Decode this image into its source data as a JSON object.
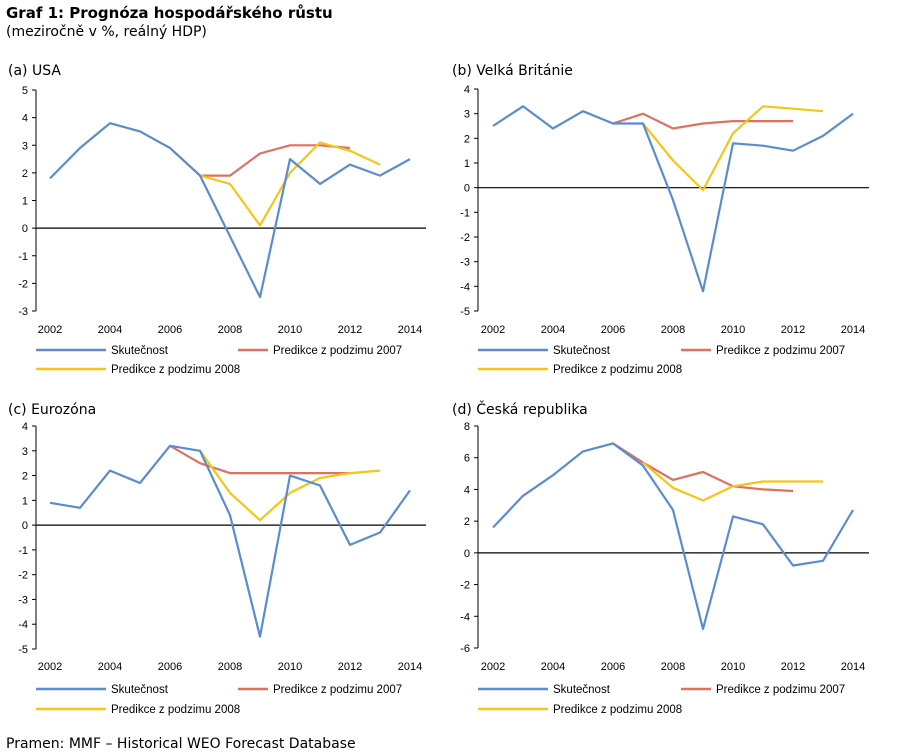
{
  "header": {
    "title": "Graf 1: Prognóza hospodářského růstu",
    "subtitle": "(meziročně v %, reálný HDP)"
  },
  "footer": {
    "source": "Pramen: MMF – Historical WEO Forecast Database"
  },
  "colors": {
    "actual": "#5b8ccf",
    "pred2007": "#e07060",
    "pred2008": "#f5c518",
    "zeroline": "#000000"
  },
  "chart_data": [
    {
      "type": "line",
      "title": "(a) USA",
      "x_ticks": [
        "2002",
        "2004",
        "2006",
        "2008",
        "2010",
        "2012",
        "2014"
      ],
      "ylim": [
        -3,
        5
      ],
      "y_ticks": [
        "-3",
        "-2",
        "-1",
        "0",
        "1",
        "2",
        "3",
        "4",
        "5"
      ],
      "legend": [
        "Skutečnost",
        "Predikce z podzimu 2007",
        "Predikce z podzimu 2008"
      ],
      "series": [
        {
          "name": "Skutečnost",
          "x": [
            2002,
            2003,
            2004,
            2005,
            2006,
            2007,
            2008,
            2009,
            2010,
            2011,
            2012,
            2013,
            2014
          ],
          "values": [
            1.8,
            2.9,
            3.8,
            3.5,
            2.9,
            1.9,
            -0.3,
            -2.5,
            2.5,
            1.6,
            2.3,
            1.9,
            2.5
          ]
        },
        {
          "name": "Predikce z podzimu 2007",
          "x": [
            2006,
            2007,
            2008,
            2009,
            2010,
            2011,
            2012
          ],
          "values": [
            2.9,
            1.9,
            1.9,
            2.7,
            3.0,
            3.0,
            2.9
          ]
        },
        {
          "name": "Predikce z podzimu 2008",
          "x": [
            2007,
            2008,
            2009,
            2010,
            2011,
            2012,
            2013
          ],
          "values": [
            1.9,
            1.6,
            0.1,
            2.0,
            3.1,
            2.8,
            2.3
          ]
        }
      ]
    },
    {
      "type": "line",
      "title": "(b) Velká Británie",
      "x_ticks": [
        "2002",
        "2004",
        "2006",
        "2008",
        "2010",
        "2012",
        "2014"
      ],
      "ylim": [
        -5,
        4
      ],
      "y_ticks": [
        "-5",
        "-4",
        "-3",
        "-2",
        "-1",
        "0",
        "1",
        "2",
        "3",
        "4"
      ],
      "legend": [
        "Skutečnost",
        "Predikce z podzimu 2007",
        "Predikce z podzimu 2008"
      ],
      "series": [
        {
          "name": "Skutečnost",
          "x": [
            2002,
            2003,
            2004,
            2005,
            2006,
            2007,
            2008,
            2009,
            2010,
            2011,
            2012,
            2013,
            2014
          ],
          "values": [
            2.5,
            3.3,
            2.4,
            3.1,
            2.6,
            2.6,
            -0.5,
            -4.2,
            1.8,
            1.7,
            1.5,
            2.1,
            3.0
          ]
        },
        {
          "name": "Predikce z podzimu 2007",
          "x": [
            2006,
            2007,
            2008,
            2009,
            2010,
            2011,
            2012
          ],
          "values": [
            2.6,
            3.0,
            2.4,
            2.6,
            2.7,
            2.7,
            2.7
          ]
        },
        {
          "name": "Predikce z podzimu 2008",
          "x": [
            2007,
            2008,
            2009,
            2010,
            2011,
            2012,
            2013
          ],
          "values": [
            2.6,
            1.1,
            -0.1,
            2.2,
            3.3,
            3.2,
            3.1
          ]
        }
      ]
    },
    {
      "type": "line",
      "title": "(c) Eurozóna",
      "x_ticks": [
        "2002",
        "2004",
        "2006",
        "2008",
        "2010",
        "2012",
        "2014"
      ],
      "ylim": [
        -5,
        4
      ],
      "y_ticks": [
        "-5",
        "-4",
        "-3",
        "-2",
        "-1",
        "0",
        "1",
        "2",
        "3",
        "4"
      ],
      "legend": [
        "Skutečnost",
        "Predikce z podzimu 2007",
        "Predikce z podzimu 2008"
      ],
      "series": [
        {
          "name": "Skutečnost",
          "x": [
            2002,
            2003,
            2004,
            2005,
            2006,
            2007,
            2008,
            2009,
            2010,
            2011,
            2012,
            2013,
            2014
          ],
          "values": [
            0.9,
            0.7,
            2.2,
            1.7,
            3.2,
            3.0,
            0.4,
            -4.5,
            2.0,
            1.6,
            -0.8,
            -0.3,
            1.4
          ]
        },
        {
          "name": "Predikce z podzimu 2007",
          "x": [
            2006,
            2007,
            2008,
            2009,
            2010,
            2011,
            2012
          ],
          "values": [
            3.2,
            2.5,
            2.1,
            2.1,
            2.1,
            2.1,
            2.1
          ]
        },
        {
          "name": "Predikce z podzimu 2008",
          "x": [
            2007,
            2008,
            2009,
            2010,
            2011,
            2012,
            2013
          ],
          "values": [
            3.0,
            1.3,
            0.2,
            1.3,
            1.9,
            2.1,
            2.2
          ]
        }
      ]
    },
    {
      "type": "line",
      "title": "(d) Česká republika",
      "x_ticks": [
        "2002",
        "2004",
        "2006",
        "2008",
        "2010",
        "2012",
        "2014"
      ],
      "ylim": [
        -6,
        8
      ],
      "y_ticks": [
        "-6",
        "-4",
        "-2",
        "0",
        "2",
        "4",
        "6",
        "8"
      ],
      "legend": [
        "Skutečnost",
        "Predikce z podzimu 2007",
        "Predikce z podzimu 2008"
      ],
      "series": [
        {
          "name": "Skutečnost",
          "x": [
            2002,
            2003,
            2004,
            2005,
            2006,
            2007,
            2008,
            2009,
            2010,
            2011,
            2012,
            2013,
            2014
          ],
          "values": [
            1.6,
            3.6,
            4.9,
            6.4,
            6.9,
            5.5,
            2.7,
            -4.8,
            2.3,
            1.8,
            -0.8,
            -0.5,
            2.7
          ]
        },
        {
          "name": "Predikce z podzimu 2007",
          "x": [
            2006,
            2007,
            2008,
            2009,
            2010,
            2011,
            2012
          ],
          "values": [
            6.9,
            5.7,
            4.6,
            5.1,
            4.2,
            4.0,
            3.9
          ]
        },
        {
          "name": "Predikce z podzimu 2008",
          "x": [
            2007,
            2008,
            2009,
            2010,
            2011,
            2012,
            2013
          ],
          "values": [
            5.7,
            4.1,
            3.3,
            4.2,
            4.5,
            4.5,
            4.5
          ]
        }
      ]
    }
  ]
}
